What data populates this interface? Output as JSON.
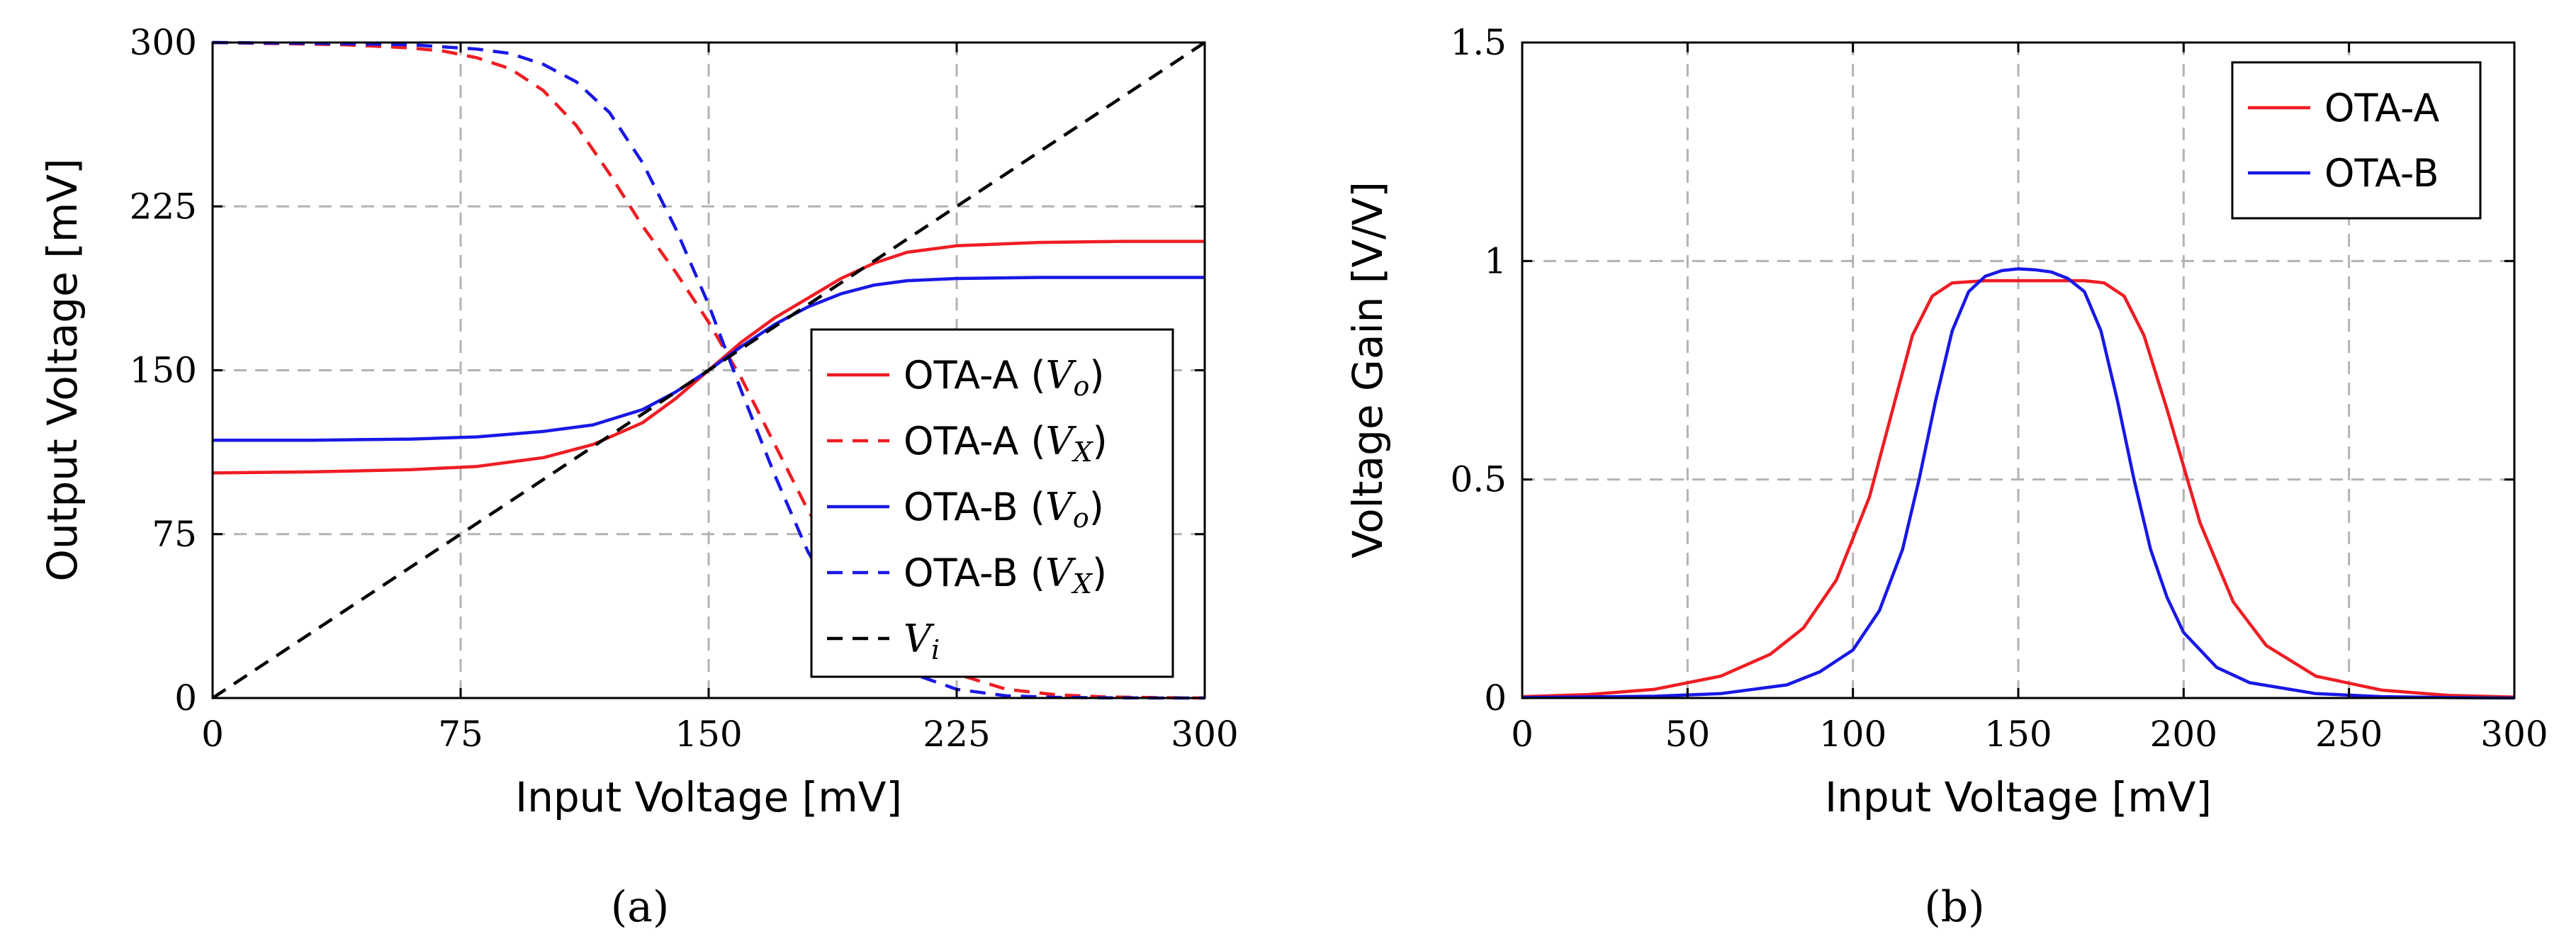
{
  "chart_data": [
    {
      "id": "a",
      "type": "line",
      "caption": "(a)",
      "xlabel": "Input Voltage [mV]",
      "ylabel": "Output Voltage [mV]",
      "xlim": [
        0,
        300
      ],
      "ylim": [
        0,
        300
      ],
      "xticks": [
        0,
        75,
        150,
        225,
        300
      ],
      "yticks": [
        0,
        75,
        150,
        225,
        300
      ],
      "xtick_labels": [
        "0",
        "75",
        "150",
        "225",
        "300"
      ],
      "ytick_labels": [
        "0",
        "75",
        "150",
        "225",
        "300"
      ],
      "grid": true,
      "legend_position": "center-right",
      "series": [
        {
          "name": "OTA-A (Vo)",
          "label": "OTA-A (",
          "sub_main": "V",
          "sub": "o",
          "close": ")",
          "color": "#ee1d23",
          "dash": "solid",
          "x": [
            0,
            30,
            60,
            80,
            100,
            115,
            130,
            140,
            150,
            160,
            170,
            180,
            190,
            200,
            210,
            225,
            250,
            275,
            300
          ],
          "y": [
            103,
            103.5,
            104.5,
            106,
            110,
            116,
            126,
            137,
            150,
            163,
            174,
            183,
            192,
            199,
            204,
            207,
            208.5,
            209,
            209
          ]
        },
        {
          "name": "OTA-A (VX)",
          "label": "OTA-A (",
          "sub_main": "V",
          "sub": "X",
          "close": ")",
          "color": "#ee1d23",
          "dash": "dashed",
          "x": [
            0,
            40,
            60,
            70,
            80,
            90,
            100,
            110,
            120,
            130,
            140,
            150,
            160,
            170,
            180,
            190,
            200,
            210,
            225,
            240,
            255,
            270,
            285,
            300
          ],
          "y": [
            300,
            299,
            297.5,
            296,
            293,
            288,
            278,
            262,
            240,
            216,
            195,
            172,
            146,
            116,
            86,
            61,
            41,
            25,
            11,
            4,
            1.5,
            0.5,
            0.2,
            0
          ]
        },
        {
          "name": "OTA-B (Vo)",
          "label": "OTA-B (",
          "sub_main": "V",
          "sub": "o",
          "close": ")",
          "color": "#1818e6",
          "dash": "solid",
          "x": [
            0,
            30,
            60,
            80,
            100,
            115,
            130,
            140,
            150,
            160,
            170,
            180,
            190,
            200,
            210,
            225,
            250,
            275,
            300
          ],
          "y": [
            118,
            118,
            118.5,
            119.5,
            122,
            125,
            132,
            140,
            150,
            161,
            171,
            179,
            185,
            189,
            191,
            192,
            192.5,
            192.5,
            192.5
          ]
        },
        {
          "name": "OTA-B (VX)",
          "label": "OTA-B (",
          "sub_main": "V",
          "sub": "X",
          "close": ")",
          "color": "#1818e6",
          "dash": "dashed",
          "x": [
            0,
            40,
            60,
            80,
            90,
            100,
            110,
            120,
            130,
            140,
            150,
            160,
            170,
            180,
            190,
            200,
            210,
            225,
            240,
            255,
            270,
            285,
            300
          ],
          "y": [
            300,
            299.5,
            299,
            297,
            295,
            290,
            282,
            268,
            245,
            215,
            180,
            140,
            102,
            67,
            41,
            23,
            12,
            4,
            1,
            0.3,
            0.1,
            0,
            0
          ]
        },
        {
          "name": "Vi",
          "label": "",
          "sub_main": "V",
          "sub": "i",
          "close": "",
          "color": "#000000",
          "dash": "dashed",
          "x": [
            0,
            300
          ],
          "y": [
            0,
            300
          ]
        }
      ]
    },
    {
      "id": "b",
      "type": "line",
      "caption": "(b)",
      "xlabel": "Input Voltage [mV]",
      "ylabel": "Voltage Gain [V/V]",
      "xlim": [
        0,
        300
      ],
      "ylim": [
        0,
        1.5
      ],
      "xticks": [
        0,
        50,
        100,
        150,
        200,
        250,
        300
      ],
      "yticks": [
        0,
        0.5,
        1,
        1.5
      ],
      "xtick_labels": [
        "0",
        "50",
        "100",
        "150",
        "200",
        "250",
        "300"
      ],
      "ytick_labels": [
        "0",
        "0.5",
        "1",
        "1.5"
      ],
      "grid": true,
      "legend_position": "top-right",
      "series": [
        {
          "name": "OTA-A",
          "label": "OTA-A",
          "color": "#ee1d23",
          "dash": "solid",
          "x": [
            0,
            20,
            40,
            60,
            75,
            85,
            95,
            105,
            112,
            118,
            124,
            130,
            140,
            150,
            160,
            170,
            176,
            182,
            188,
            195,
            205,
            215,
            225,
            240,
            260,
            280,
            300
          ],
          "y": [
            0.003,
            0.008,
            0.02,
            0.05,
            0.1,
            0.16,
            0.27,
            0.46,
            0.66,
            0.83,
            0.92,
            0.95,
            0.955,
            0.955,
            0.955,
            0.955,
            0.95,
            0.92,
            0.83,
            0.66,
            0.4,
            0.22,
            0.12,
            0.05,
            0.018,
            0.006,
            0.002
          ]
        },
        {
          "name": "OTA-B",
          "label": "OTA-B",
          "color": "#1818e6",
          "dash": "solid",
          "x": [
            0,
            40,
            60,
            80,
            90,
            100,
            108,
            115,
            120,
            125,
            130,
            135,
            140,
            145,
            150,
            155,
            160,
            165,
            170,
            175,
            180,
            185,
            190,
            195,
            200,
            210,
            220,
            240,
            260,
            280,
            300
          ],
          "y": [
            0.001,
            0.004,
            0.01,
            0.03,
            0.06,
            0.11,
            0.2,
            0.34,
            0.5,
            0.68,
            0.84,
            0.93,
            0.965,
            0.978,
            0.982,
            0.98,
            0.975,
            0.96,
            0.93,
            0.84,
            0.68,
            0.5,
            0.34,
            0.23,
            0.15,
            0.07,
            0.035,
            0.01,
            0.003,
            0.001,
            0
          ]
        }
      ]
    }
  ]
}
